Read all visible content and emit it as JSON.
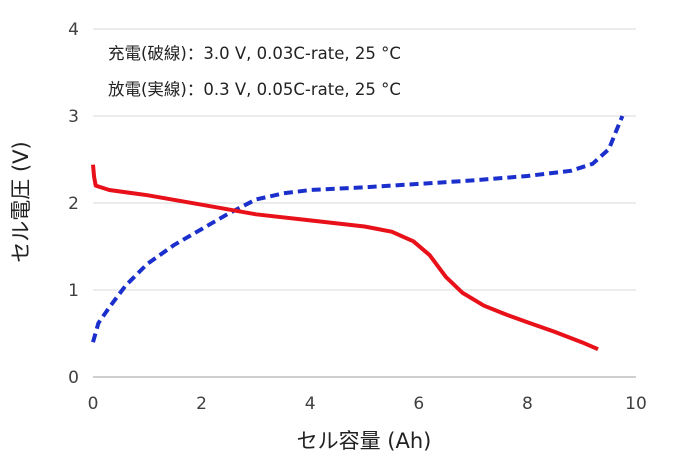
{
  "chart_data": {
    "type": "line",
    "title": "",
    "xlabel": "セル容量 (Ah)",
    "ylabel": "セル電圧 (V)",
    "xlim": [
      0,
      10
    ],
    "ylim": [
      0,
      4
    ],
    "xticks": [
      "0",
      "2",
      "4",
      "6",
      "8",
      "10"
    ],
    "yticks": [
      "0",
      "1",
      "2",
      "3",
      "4"
    ],
    "grid": "horizontal",
    "annotations": [
      "充電(破線)：3.0 V, 0.03C-rate, 25 °C",
      "放電(実線)：0.3 V, 0.05C-rate, 25 °C"
    ],
    "series": [
      {
        "style": "dashed",
        "color": "#1a2fcc",
        "points": [
          [
            0,
            0.4
          ],
          [
            0.1,
            0.62
          ],
          [
            0.3,
            0.8
          ],
          [
            0.6,
            1.05
          ],
          [
            1.0,
            1.3
          ],
          [
            1.5,
            1.52
          ],
          [
            2.0,
            1.7
          ],
          [
            2.5,
            1.88
          ],
          [
            3.0,
            2.04
          ],
          [
            3.5,
            2.11
          ],
          [
            4.0,
            2.15
          ],
          [
            5.0,
            2.18
          ],
          [
            6.0,
            2.22
          ],
          [
            7.0,
            2.26
          ],
          [
            8.0,
            2.31
          ],
          [
            8.8,
            2.37
          ],
          [
            9.2,
            2.45
          ],
          [
            9.5,
            2.62
          ],
          [
            9.65,
            2.85
          ],
          [
            9.75,
            3.0
          ]
        ]
      },
      {
        "style": "solid",
        "color": "#e8111a",
        "points": [
          [
            0,
            2.44
          ],
          [
            0.02,
            2.3
          ],
          [
            0.05,
            2.2
          ],
          [
            0.3,
            2.15
          ],
          [
            1.0,
            2.09
          ],
          [
            2.0,
            1.98
          ],
          [
            3.0,
            1.87
          ],
          [
            4.0,
            1.8
          ],
          [
            5.0,
            1.73
          ],
          [
            5.5,
            1.67
          ],
          [
            5.9,
            1.56
          ],
          [
            6.2,
            1.4
          ],
          [
            6.5,
            1.15
          ],
          [
            6.8,
            0.97
          ],
          [
            7.2,
            0.82
          ],
          [
            7.6,
            0.72
          ],
          [
            8.0,
            0.63
          ],
          [
            8.5,
            0.52
          ],
          [
            9.0,
            0.4
          ],
          [
            9.3,
            0.32
          ]
        ]
      }
    ]
  }
}
